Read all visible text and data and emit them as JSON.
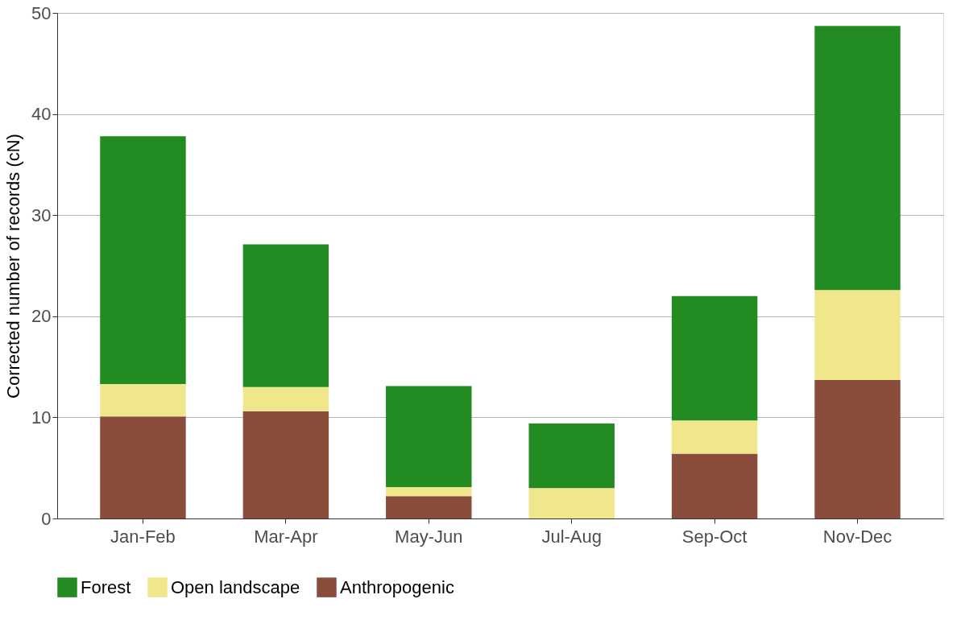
{
  "chart_data": {
    "type": "bar",
    "stacked": true,
    "ylabel": "Corrected number of records (cN)",
    "categories": [
      "Jan-Feb",
      "Mar-Apr",
      "May-Jun",
      "Jul-Aug",
      "Sep-Oct",
      "Nov-Dec"
    ],
    "series": [
      {
        "name": "Anthropogenic",
        "color": "#8b4d3b",
        "values": [
          10.1,
          10.6,
          2.2,
          0,
          6.4,
          13.7
        ]
      },
      {
        "name": "Open landscape",
        "color": "#f0e68c",
        "values": [
          3.2,
          2.4,
          0.9,
          3.0,
          3.3,
          8.9
        ]
      },
      {
        "name": "Forest",
        "color": "#228b22",
        "values": [
          24.5,
          14.1,
          10.0,
          6.4,
          12.3,
          26.1
        ]
      }
    ],
    "ylim": [
      0,
      50
    ],
    "yticks": [
      0,
      10,
      20,
      30,
      40,
      50
    ],
    "grid": "y",
    "legend": "bottom"
  }
}
